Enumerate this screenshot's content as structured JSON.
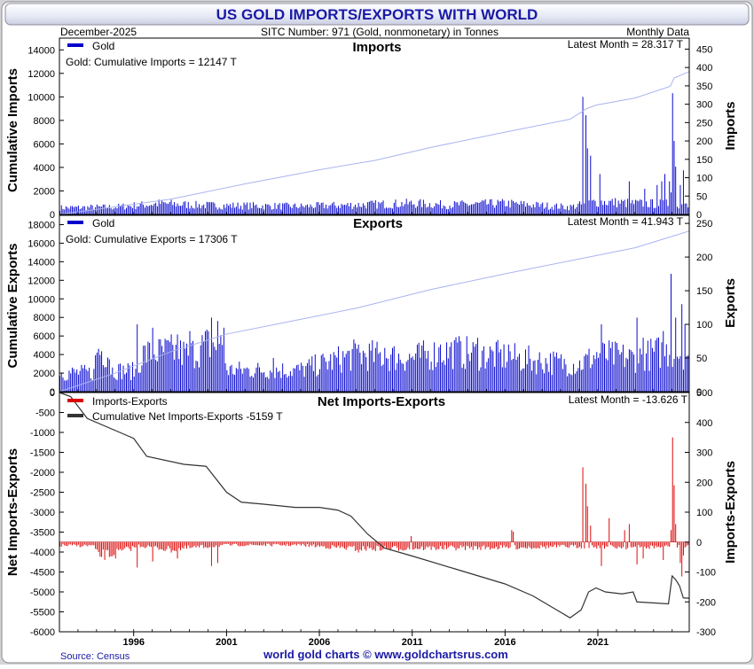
{
  "title": "US GOLD IMPORTS/EXPORTS WITH WORLD",
  "header": {
    "date": "December-2025",
    "sitc": "SITC Number: 971 (Gold, nonmonetary) in Tonnes",
    "frequency": "Monthly Data"
  },
  "footer": {
    "source": "Source: Census",
    "credit": "world gold charts © www.goldchartsrus.com"
  },
  "colors": {
    "title_text": "#1a1aa6",
    "imports_bars": "#0000cc",
    "exports_bars": "#0000cc",
    "cumulative_line": "#aab4f0",
    "net_bars": "#dd0000",
    "net_cumulative_line": "#333333",
    "background_outer": "#d4d4d8"
  },
  "chart_data": [
    {
      "type": "bar",
      "name": "imports",
      "title": "Imports",
      "latest": "Latest Month = 28.317 T",
      "legend": [
        "Gold"
      ],
      "annotation": "Gold: Cumulative Imports = 12147 T",
      "ylabel_left": "Cumulative Imports",
      "ylabel_right": "Imports",
      "left_ylim": [
        0,
        15000
      ],
      "left_ticks": [
        "0",
        "2000",
        "4000",
        "6000",
        "8000",
        "10000",
        "12000",
        "14000"
      ],
      "right_ylim": [
        0,
        480
      ],
      "right_ticks": [
        "0",
        "50",
        "100",
        "150",
        "200",
        "250",
        "300",
        "350",
        "400",
        "450"
      ],
      "x_range": [
        1992.0,
        2025.92
      ],
      "series": [
        {
          "name": "Gold (monthly, T)",
          "segments": [
            [
              1992,
              18
            ],
            [
              1995,
              20
            ],
            [
              1997.5,
              30
            ],
            [
              1999.5,
              25
            ],
            [
              2005,
              22
            ],
            [
              2008,
              26
            ],
            [
              2011,
              30
            ],
            [
              2013,
              26
            ],
            [
              2016,
              30
            ],
            [
              2019.5,
              20
            ],
            [
              2021,
              35
            ],
            [
              2023,
              30
            ],
            [
              2025.92,
              28
            ]
          ],
          "spikes": [
            [
              2020.2,
              320
            ],
            [
              2020.3,
              270
            ],
            [
              2020.45,
              180
            ],
            [
              2020.6,
              160
            ],
            [
              2021.1,
              110
            ],
            [
              2022.7,
              90
            ],
            [
              2023.5,
              70
            ],
            [
              2024.2,
              80
            ],
            [
              2024.4,
              90
            ],
            [
              2024.55,
              110
            ],
            [
              2024.85,
              90
            ],
            [
              2024.95,
              60
            ],
            [
              2025.0,
              330
            ],
            [
              2025.1,
              200
            ],
            [
              2025.2,
              130
            ],
            [
              2025.4,
              80
            ],
            [
              2025.6,
              120
            ],
            [
              2025.75,
              30
            ]
          ]
        },
        {
          "name": "Cumulative Imports",
          "points": [
            [
              1992,
              0
            ],
            [
              1998,
              1300
            ],
            [
              2002,
              2600
            ],
            [
              2006,
              3800
            ],
            [
              2009,
              4600
            ],
            [
              2012,
              5700
            ],
            [
              2016,
              7000
            ],
            [
              2019.5,
              8100
            ],
            [
              2020.4,
              9000
            ],
            [
              2020.9,
              9300
            ],
            [
              2023,
              9900
            ],
            [
              2024.9,
              10900
            ],
            [
              2025.1,
              11600
            ],
            [
              2025.92,
              12147
            ]
          ]
        }
      ]
    },
    {
      "type": "bar",
      "name": "exports",
      "title": "Exports",
      "latest": "Latest Month = 41.943 T",
      "legend": [
        "Gold"
      ],
      "annotation": "Gold: Cumulative Exports = 17306 T",
      "ylabel_left": "Cumulative Exports",
      "ylabel_right": "Exports",
      "left_ylim": [
        0,
        19000
      ],
      "left_ticks": [
        "0",
        "2000",
        "4000",
        "6000",
        "8000",
        "10000",
        "12000",
        "14000",
        "16000",
        "18000"
      ],
      "right_ylim": [
        0,
        262
      ],
      "right_ticks": [
        "0",
        "50",
        "100",
        "150",
        "200",
        "250"
      ],
      "x_range": [
        1992.0,
        2025.92
      ],
      "series": [
        {
          "name": "Gold (monthly, T)",
          "segments": [
            [
              1992,
              28
            ],
            [
              1993.9,
              28
            ],
            [
              1994,
              62
            ],
            [
              1994.7,
              58
            ],
            [
              1994.8,
              32
            ],
            [
              1996.3,
              30
            ],
            [
              1996.4,
              55
            ],
            [
              1998,
              60
            ],
            [
              1999,
              55
            ],
            [
              2000,
              70
            ],
            [
              2000.9,
              68
            ],
            [
              2001,
              32
            ],
            [
              2005,
              32
            ],
            [
              2006,
              40
            ],
            [
              2008,
              55
            ],
            [
              2011,
              50
            ],
            [
              2013,
              60
            ],
            [
              2016,
              52
            ],
            [
              2018,
              45
            ],
            [
              2020,
              40
            ],
            [
              2021,
              55
            ],
            [
              2023,
              50
            ],
            [
              2024.5,
              60
            ],
            [
              2025.92,
              58
            ]
          ],
          "spikes": [
            [
              1996.2,
              100
            ],
            [
              1997.0,
              95
            ],
            [
              1998.3,
              85
            ],
            [
              1999.0,
              90
            ],
            [
              2000.2,
              110
            ],
            [
              2000.5,
              105
            ],
            [
              2000.8,
              95
            ],
            [
              2003.5,
              50
            ],
            [
              2008.1,
              70
            ],
            [
              2009.5,
              65
            ],
            [
              2012.5,
              70
            ],
            [
              2013.6,
              75
            ],
            [
              2014.5,
              80
            ],
            [
              2016.2,
              70
            ],
            [
              2021.2,
              100
            ],
            [
              2023.1,
              110
            ],
            [
              2023.4,
              80
            ],
            [
              2024.5,
              90
            ],
            [
              2024.95,
              175
            ],
            [
              2025.15,
              110
            ],
            [
              2025.5,
              130
            ],
            [
              2025.7,
              100
            ]
          ]
        },
        {
          "name": "Cumulative Exports",
          "points": [
            [
              1992,
              0
            ],
            [
              1995,
              2000
            ],
            [
              1998,
              4300
            ],
            [
              2001,
              6200
            ],
            [
              2004,
              7400
            ],
            [
              2008,
              9000
            ],
            [
              2012,
              11000
            ],
            [
              2016,
              12700
            ],
            [
              2020,
              14300
            ],
            [
              2023,
              15500
            ],
            [
              2025.92,
              17306
            ]
          ]
        }
      ]
    },
    {
      "type": "bar",
      "name": "net",
      "title": "Net Imports-Exports",
      "latest": "Latest Month = -13.626 T",
      "legend": [
        "Imports-Exports",
        "Cumulative Net Imports-Exports -5159 T"
      ],
      "ylabel_left": "Net Imports-Exports",
      "ylabel_right": "Imports-Exports",
      "left_ylim": [
        -6000,
        0
      ],
      "left_ticks": [
        "-6000",
        "-5500",
        "-5000",
        "-4500",
        "-4000",
        "-3500",
        "-3000",
        "-2500",
        "-2000",
        "-1500",
        "-1000",
        "-500",
        "0"
      ],
      "right_ylim": [
        -300,
        500
      ],
      "right_ticks": [
        "-300",
        "-200",
        "-100",
        "0",
        "100",
        "200",
        "300",
        "400",
        "500"
      ],
      "x_range": [
        1992.0,
        2025.92
      ],
      "x_ticks": [
        "1996",
        "2001",
        "2006",
        "2011",
        "2016",
        "2021"
      ],
      "series": [
        {
          "name": "Imports-Exports (monthly, T)",
          "segments": [
            [
              1992,
              -12
            ],
            [
              1993.9,
              -12
            ],
            [
              1994,
              -45
            ],
            [
              1995,
              -40
            ],
            [
              1996.3,
              -12
            ],
            [
              1998,
              -25
            ],
            [
              2001,
              -10
            ],
            [
              2005,
              -10
            ],
            [
              2008,
              -22
            ],
            [
              2012,
              -20
            ],
            [
              2016,
              -18
            ],
            [
              2019.5,
              -15
            ],
            [
              2021,
              -15
            ],
            [
              2023,
              -18
            ],
            [
              2025.92,
              -14
            ]
          ],
          "spikes": [
            [
              1996.2,
              -85
            ],
            [
              1997.0,
              -65
            ],
            [
              1998.3,
              -55
            ],
            [
              2000.2,
              -80
            ],
            [
              2000.5,
              -70
            ],
            [
              2008.1,
              -35
            ],
            [
              2010.9,
              20
            ],
            [
              2016.3,
              40
            ],
            [
              2016.45,
              35
            ],
            [
              2020.2,
              250
            ],
            [
              2020.3,
              195
            ],
            [
              2020.45,
              120
            ],
            [
              2020.6,
              55
            ],
            [
              2021.2,
              -80
            ],
            [
              2021.6,
              80
            ],
            [
              2022.4,
              40
            ],
            [
              2022.7,
              60
            ],
            [
              2023.1,
              -75
            ],
            [
              2023.4,
              -55
            ],
            [
              2024.5,
              -60
            ],
            [
              2024.9,
              40
            ],
            [
              2025.0,
              350
            ],
            [
              2025.1,
              190
            ],
            [
              2025.2,
              60
            ],
            [
              2025.4,
              -70
            ],
            [
              2025.5,
              -115
            ],
            [
              2025.6,
              -45
            ],
            [
              2025.75,
              -14
            ]
          ]
        },
        {
          "name": "Cumulative Net Imports-Exports",
          "points": [
            [
              1992,
              0
            ],
            [
              1992.6,
              -100
            ],
            [
              1993.5,
              -650
            ],
            [
              1995,
              -950
            ],
            [
              1996,
              -1150
            ],
            [
              1996.7,
              -1600
            ],
            [
              1998.7,
              -1800
            ],
            [
              1999.9,
              -1850
            ],
            [
              2001,
              -2500
            ],
            [
              2001.8,
              -2750
            ],
            [
              2003,
              -2800
            ],
            [
              2004.7,
              -2880
            ],
            [
              2006,
              -2880
            ],
            [
              2007,
              -2950
            ],
            [
              2007.7,
              -3100
            ],
            [
              2008.6,
              -3550
            ],
            [
              2009.5,
              -3900
            ],
            [
              2011,
              -4100
            ],
            [
              2013.5,
              -4450
            ],
            [
              2016,
              -4800
            ],
            [
              2017.5,
              -5100
            ],
            [
              2019.5,
              -5650
            ],
            [
              2020.1,
              -5450
            ],
            [
              2020.5,
              -5000
            ],
            [
              2020.9,
              -4900
            ],
            [
              2021.4,
              -5000
            ],
            [
              2022.3,
              -5050
            ],
            [
              2022.9,
              -5000
            ],
            [
              2023.1,
              -5250
            ],
            [
              2024.8,
              -5300
            ],
            [
              2025.0,
              -4600
            ],
            [
              2025.2,
              -4700
            ],
            [
              2025.4,
              -4850
            ],
            [
              2025.6,
              -5150
            ],
            [
              2025.92,
              -5159
            ]
          ]
        }
      ]
    }
  ]
}
